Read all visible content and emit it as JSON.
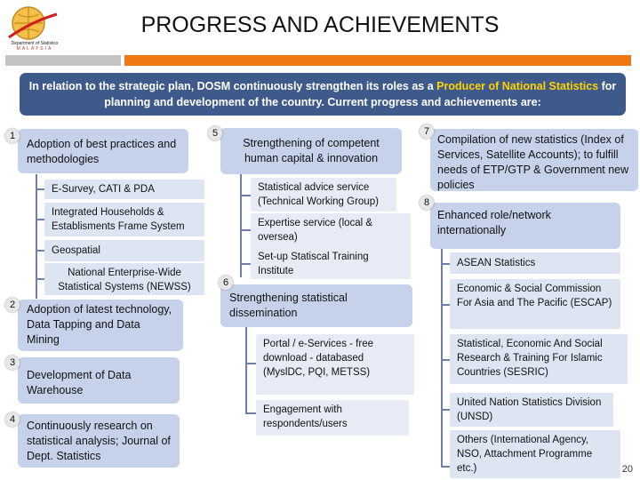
{
  "header": {
    "title": "PROGRESS AND ACHIEVEMENTS",
    "logo_line1": "Department of Statistics",
    "logo_line2": "MALAYSIA"
  },
  "intro": {
    "part1": "In relation to the strategic plan, DOSM continuously strengthen its roles as a ",
    "highlight": "Producer of National Statistics",
    "part2": " for planning and development of the country. Current progress and achievements are:"
  },
  "colors": {
    "orange": "#f07814",
    "intro_bg": "#3e5a8a",
    "highlight": "#ffd200",
    "box_bg": "#c6d2ea",
    "sub_bg": "#dde5f3"
  },
  "left": {
    "items": [
      {
        "num": "1",
        "text": "Adoption of best practices and methodologies"
      },
      {
        "num": "2",
        "text": "Adoption of latest technology, Data Tapping and Data Mining"
      },
      {
        "num": "3",
        "text": "Development of Data Warehouse"
      },
      {
        "num": "4",
        "text": "Continuously research on statistical analysis; Journal of Dept. Statistics"
      }
    ],
    "subs": [
      "E-Survey, CATI & PDA",
      "Integrated Households & Establisments Frame System",
      "Geospatial",
      "National Enterprise-Wide Statistical Systems (NEWSS)"
    ]
  },
  "middle": {
    "items": [
      {
        "num": "5",
        "text": "Strengthening of competent human capital & innovation"
      },
      {
        "num": "6",
        "text": "Strengthening statistical dissemination"
      }
    ],
    "subs5": [
      "Statistical advice service (Technical Working Group)",
      "Expertise service (local & oversea)",
      "Set-up Statiscal Training Institute"
    ],
    "subs6": [
      "Portal / e-Services - free download - databased (MyslDC, PQI, METSS)",
      "Engagement with respondents/users"
    ]
  },
  "right": {
    "items": [
      {
        "num": "7",
        "text": "Compilation of new statistics (Index of Services, Satellite Accounts); to fulfill needs of ETP/GTP & Government new policies"
      },
      {
        "num": "8",
        "text": "Enhanced role/network internationally"
      }
    ],
    "subs": [
      "ASEAN Statistics",
      "Economic & Social Commission For Asia and The Pacific (ESCAP)",
      "Statistical, Economic And Social Research & Training For Islamic Countries (SESRIC)",
      "United Nation Statistics Division (UNSD)",
      "Others (International Agency, NSO, Attachment Programme etc.)"
    ]
  },
  "footer": {
    "page_number": "20"
  }
}
